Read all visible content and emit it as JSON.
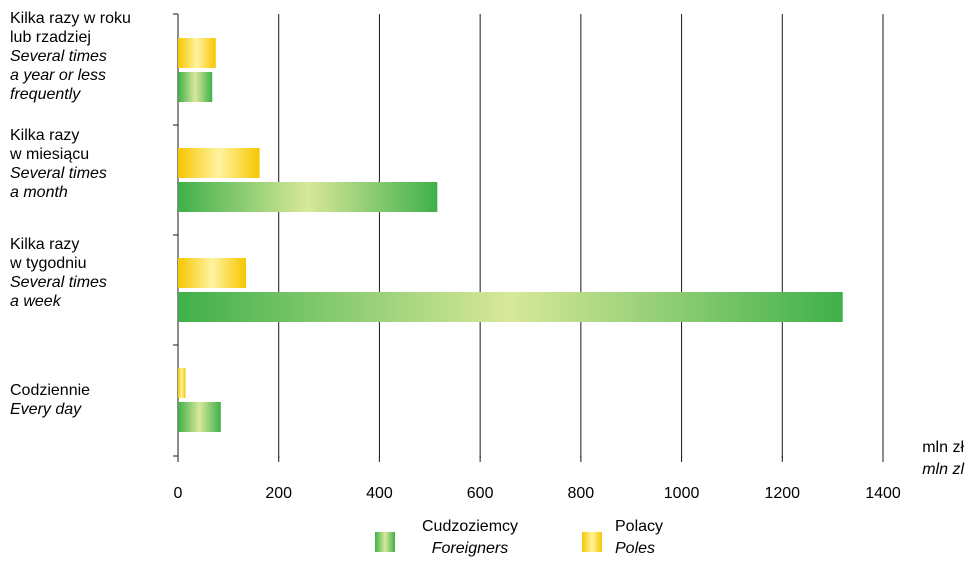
{
  "chart_data": {
    "type": "bar",
    "orientation": "horizontal",
    "categories": [
      {
        "pl": [
          "Kilka razy w roku",
          "lub rzadziej"
        ],
        "en": [
          "Several times",
          "a year or less",
          "frequently"
        ]
      },
      {
        "pl": [
          "Kilka razy",
          "w miesiącu"
        ],
        "en": [
          "Several times",
          "a month"
        ]
      },
      {
        "pl": [
          "Kilka razy",
          "w tygodniu"
        ],
        "en": [
          "Several times",
          "a week"
        ]
      },
      {
        "pl": [
          "Codziennie"
        ],
        "en": [
          "Every day"
        ]
      }
    ],
    "series": [
      {
        "name_pl": "Polacy",
        "name_en": "Poles",
        "color": "#f7c600",
        "glow": "#fff3a0",
        "values": [
          75,
          162,
          135,
          15
        ]
      },
      {
        "name_pl": "Cudzoziemcy",
        "name_en": "Foreigners",
        "color": "#3fb04a",
        "glow": "#d8e89a",
        "values": [
          68,
          515,
          1320,
          85
        ]
      }
    ],
    "x_ticks": [
      0,
      200,
      400,
      600,
      800,
      1000,
      1200,
      1400
    ],
    "xlim": [
      0,
      1400
    ],
    "unit": {
      "pl": "mln zł",
      "en": "mln zl"
    },
    "grid": true,
    "legend_position": "bottom"
  }
}
